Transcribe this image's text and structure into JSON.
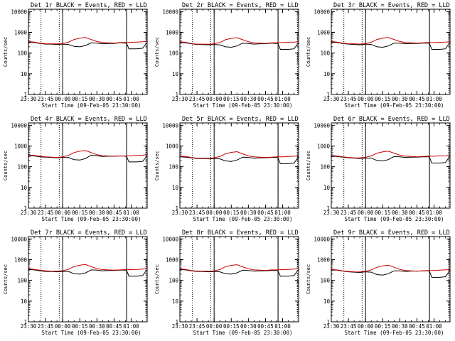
{
  "figure": {
    "common": {
      "xlabel": "Start Time (09-Feb-05 23:30:00)",
      "ylabel": "Counts/sec",
      "x_ticks": [
        "23:30",
        "23:45",
        "00:00",
        "00:15",
        "00:30",
        "00:45",
        "01:00"
      ],
      "x_tick_minutes": [
        0,
        15,
        30,
        45,
        60,
        75,
        90
      ],
      "y_ticks": [
        "1",
        "10",
        "100",
        "1000",
        "10000"
      ],
      "y_tick_values": [
        1,
        10,
        100,
        1000,
        10000
      ],
      "xlim_minutes": [
        0,
        104
      ],
      "ylim": [
        1,
        13000
      ],
      "yscale": "log",
      "vertical_lines": {
        "solid_minutes": [
          30,
          86
        ],
        "dotted_minutes": [
          11,
          27,
          86,
          103
        ]
      },
      "colors": {
        "events": "#000000",
        "lld": "#cc0000",
        "axis": "#000000",
        "background": "#ffffff"
      }
    }
  },
  "chart_data": [
    {
      "type": "line",
      "title": "Det 1r BLACK = Events, RED = LLD",
      "xlabel": "Start Time (09-Feb-05 23:30:00)",
      "ylabel": "Counts/sec",
      "ylim": [
        1,
        13000
      ],
      "series": [
        {
          "name": "Events",
          "color": "#000000",
          "x": [
            0,
            5,
            10,
            15,
            20,
            25,
            30,
            35,
            40,
            45,
            50,
            55,
            60,
            65,
            70,
            75,
            80,
            85,
            86,
            88,
            90,
            95,
            100,
            104
          ],
          "values": [
            330,
            320,
            290,
            270,
            270,
            260,
            270,
            260,
            210,
            200,
            230,
            310,
            300,
            280,
            290,
            290,
            310,
            300,
            290,
            160,
            160,
            160,
            170,
            330
          ]
        },
        {
          "name": "LLD",
          "color": "#cc0000",
          "x": [
            0,
            5,
            10,
            15,
            20,
            25,
            30,
            35,
            40,
            45,
            50,
            55,
            60,
            65,
            70,
            75,
            80,
            85,
            90,
            95,
            100,
            104
          ],
          "values": [
            360,
            340,
            300,
            280,
            280,
            275,
            290,
            330,
            450,
            520,
            560,
            450,
            360,
            320,
            310,
            300,
            320,
            320,
            330,
            340,
            350,
            360
          ]
        }
      ]
    },
    {
      "type": "line",
      "title": "Det 2r BLACK = Events, RED = LLD",
      "xlabel": "Start Time (09-Feb-05 23:30:00)",
      "ylabel": "Counts/sec",
      "ylim": [
        1,
        13000
      ],
      "series": [
        {
          "name": "Events",
          "color": "#000000",
          "x": [
            0,
            5,
            10,
            15,
            20,
            25,
            30,
            35,
            40,
            45,
            50,
            55,
            60,
            65,
            70,
            75,
            80,
            85,
            86,
            88,
            90,
            95,
            100,
            104
          ],
          "values": [
            320,
            310,
            280,
            260,
            260,
            250,
            260,
            250,
            200,
            190,
            220,
            300,
            290,
            270,
            280,
            280,
            300,
            290,
            280,
            150,
            150,
            150,
            160,
            320
          ]
        },
        {
          "name": "LLD",
          "color": "#cc0000",
          "x": [
            0,
            5,
            10,
            15,
            20,
            25,
            30,
            35,
            40,
            45,
            50,
            55,
            60,
            65,
            70,
            75,
            80,
            85,
            90,
            95,
            100,
            104
          ],
          "values": [
            350,
            330,
            290,
            270,
            270,
            265,
            280,
            320,
            440,
            510,
            550,
            440,
            350,
            310,
            300,
            290,
            310,
            310,
            320,
            330,
            340,
            350
          ]
        }
      ]
    },
    {
      "type": "line",
      "title": "Det 3r BLACK = Events, RED = LLD",
      "xlabel": "Start Time (09-Feb-05 23:30:00)",
      "ylabel": "Counts/sec",
      "ylim": [
        1,
        13000
      ],
      "series": [
        {
          "name": "Events",
          "color": "#000000",
          "x": [
            0,
            5,
            10,
            15,
            20,
            25,
            30,
            35,
            40,
            45,
            50,
            55,
            60,
            65,
            70,
            75,
            80,
            85,
            86,
            88,
            90,
            95,
            100,
            104
          ],
          "values": [
            330,
            320,
            290,
            270,
            260,
            250,
            270,
            260,
            200,
            190,
            220,
            300,
            300,
            280,
            290,
            290,
            300,
            300,
            290,
            150,
            150,
            150,
            160,
            330
          ]
        },
        {
          "name": "LLD",
          "color": "#cc0000",
          "x": [
            0,
            5,
            10,
            15,
            20,
            25,
            30,
            35,
            40,
            45,
            50,
            55,
            60,
            65,
            70,
            75,
            80,
            85,
            90,
            95,
            100,
            104
          ],
          "values": [
            360,
            340,
            300,
            280,
            280,
            270,
            290,
            330,
            450,
            520,
            560,
            450,
            360,
            320,
            310,
            300,
            310,
            320,
            320,
            330,
            340,
            350
          ]
        }
      ]
    },
    {
      "type": "line",
      "title": "Det 4r BLACK = Events, RED = LLD",
      "xlabel": "Start Time (09-Feb-05 23:30:00)",
      "ylabel": "Counts/sec",
      "ylim": [
        1,
        13000
      ],
      "series": [
        {
          "name": "Events",
          "color": "#000000",
          "x": [
            0,
            5,
            10,
            15,
            20,
            25,
            30,
            35,
            40,
            45,
            50,
            55,
            60,
            65,
            70,
            75,
            80,
            85,
            86,
            88,
            90,
            95,
            100,
            104
          ],
          "values": [
            340,
            330,
            300,
            290,
            280,
            270,
            280,
            280,
            220,
            210,
            250,
            360,
            340,
            310,
            320,
            320,
            330,
            320,
            310,
            170,
            170,
            170,
            180,
            340
          ]
        },
        {
          "name": "LLD",
          "color": "#cc0000",
          "x": [
            0,
            5,
            10,
            15,
            20,
            25,
            30,
            35,
            40,
            45,
            50,
            55,
            60,
            65,
            70,
            75,
            80,
            85,
            90,
            95,
            100,
            104
          ],
          "values": [
            370,
            350,
            320,
            300,
            290,
            280,
            300,
            350,
            480,
            560,
            600,
            480,
            380,
            340,
            330,
            320,
            330,
            330,
            340,
            350,
            360,
            380
          ]
        }
      ]
    },
    {
      "type": "line",
      "title": "Det 5r BLACK = Events, RED = LLD",
      "xlabel": "Start Time (09-Feb-05 23:30:00)",
      "ylabel": "Counts/sec",
      "ylim": [
        1,
        13000
      ],
      "series": [
        {
          "name": "Events",
          "color": "#000000",
          "x": [
            0,
            5,
            10,
            15,
            20,
            25,
            30,
            35,
            40,
            45,
            50,
            55,
            60,
            65,
            70,
            75,
            80,
            85,
            86,
            88,
            90,
            95,
            100,
            104
          ],
          "values": [
            300,
            290,
            270,
            250,
            250,
            240,
            250,
            240,
            190,
            180,
            210,
            290,
            280,
            260,
            270,
            270,
            280,
            280,
            270,
            140,
            140,
            140,
            150,
            300
          ]
        },
        {
          "name": "LLD",
          "color": "#cc0000",
          "x": [
            0,
            5,
            10,
            15,
            20,
            25,
            30,
            35,
            40,
            45,
            50,
            55,
            60,
            65,
            70,
            75,
            80,
            85,
            90,
            95,
            100,
            104
          ],
          "values": [
            330,
            310,
            280,
            260,
            260,
            250,
            270,
            310,
            420,
            490,
            530,
            420,
            330,
            300,
            290,
            280,
            290,
            300,
            300,
            310,
            320,
            330
          ]
        }
      ]
    },
    {
      "type": "line",
      "title": "Det 6r BLACK = Events, RED = LLD",
      "xlabel": "Start Time (09-Feb-05 23:30:00)",
      "ylabel": "Counts/sec",
      "ylim": [
        1,
        13000
      ],
      "series": [
        {
          "name": "Events",
          "color": "#000000",
          "x": [
            0,
            5,
            10,
            15,
            20,
            25,
            30,
            35,
            40,
            45,
            50,
            55,
            60,
            65,
            70,
            75,
            80,
            85,
            86,
            88,
            90,
            95,
            100,
            104
          ],
          "values": [
            320,
            310,
            290,
            270,
            260,
            250,
            260,
            260,
            200,
            190,
            220,
            310,
            300,
            280,
            290,
            290,
            300,
            300,
            290,
            150,
            150,
            150,
            160,
            320
          ]
        },
        {
          "name": "LLD",
          "color": "#cc0000",
          "x": [
            0,
            5,
            10,
            15,
            20,
            25,
            30,
            35,
            40,
            45,
            50,
            55,
            60,
            65,
            70,
            75,
            80,
            85,
            90,
            95,
            100,
            104
          ],
          "values": [
            350,
            330,
            300,
            280,
            270,
            265,
            285,
            330,
            450,
            520,
            560,
            450,
            360,
            320,
            310,
            300,
            310,
            320,
            320,
            330,
            340,
            350
          ]
        }
      ]
    },
    {
      "type": "line",
      "title": "Det 7r BLACK = Events, RED = LLD",
      "xlabel": "Start Time (09-Feb-05 23:30:00)",
      "ylabel": "Counts/sec",
      "ylim": [
        1,
        13000
      ],
      "series": [
        {
          "name": "Events",
          "color": "#000000",
          "x": [
            0,
            5,
            10,
            15,
            20,
            25,
            30,
            35,
            40,
            45,
            50,
            55,
            60,
            65,
            70,
            75,
            80,
            85,
            86,
            88,
            90,
            95,
            100,
            104
          ],
          "values": [
            340,
            320,
            290,
            270,
            270,
            260,
            270,
            270,
            210,
            200,
            230,
            320,
            310,
            290,
            300,
            300,
            310,
            310,
            300,
            160,
            160,
            160,
            170,
            330
          ]
        },
        {
          "name": "LLD",
          "color": "#cc0000",
          "x": [
            0,
            5,
            10,
            15,
            20,
            25,
            30,
            35,
            40,
            45,
            50,
            55,
            60,
            65,
            70,
            75,
            80,
            85,
            90,
            95,
            100,
            104
          ],
          "values": [
            370,
            340,
            310,
            290,
            280,
            275,
            295,
            340,
            470,
            540,
            580,
            460,
            370,
            330,
            320,
            310,
            320,
            330,
            330,
            340,
            350,
            360
          ]
        }
      ]
    },
    {
      "type": "line",
      "title": "Det 8r BLACK = Events, RED = LLD",
      "xlabel": "Start Time (09-Feb-05 23:30:00)",
      "ylabel": "Counts/sec",
      "ylim": [
        1,
        13000
      ],
      "series": [
        {
          "name": "Events",
          "color": "#000000",
          "x": [
            0,
            5,
            10,
            15,
            20,
            25,
            30,
            35,
            40,
            45,
            50,
            55,
            60,
            65,
            70,
            75,
            80,
            85,
            86,
            88,
            90,
            95,
            100,
            104
          ],
          "values": [
            330,
            320,
            290,
            270,
            270,
            260,
            270,
            260,
            210,
            200,
            230,
            310,
            300,
            280,
            290,
            290,
            300,
            300,
            290,
            160,
            160,
            160,
            170,
            330
          ]
        },
        {
          "name": "LLD",
          "color": "#cc0000",
          "x": [
            0,
            5,
            10,
            15,
            20,
            25,
            30,
            35,
            40,
            45,
            50,
            55,
            60,
            65,
            70,
            75,
            80,
            85,
            90,
            95,
            100,
            104
          ],
          "values": [
            360,
            340,
            300,
            280,
            280,
            275,
            290,
            330,
            460,
            530,
            570,
            450,
            360,
            320,
            310,
            300,
            320,
            320,
            330,
            340,
            350,
            360
          ]
        }
      ]
    },
    {
      "type": "line",
      "title": "Det 9r BLACK = Events, RED = LLD",
      "xlabel": "Start Time (09-Feb-05 23:30:00)",
      "ylabel": "Counts/sec",
      "ylim": [
        1,
        13000
      ],
      "series": [
        {
          "name": "Events",
          "color": "#000000",
          "x": [
            0,
            5,
            10,
            15,
            20,
            25,
            30,
            35,
            40,
            45,
            50,
            55,
            60,
            65,
            70,
            75,
            80,
            85,
            86,
            88,
            90,
            95,
            100,
            104
          ],
          "values": [
            320,
            310,
            280,
            260,
            250,
            240,
            260,
            250,
            190,
            180,
            210,
            290,
            290,
            270,
            280,
            280,
            290,
            290,
            280,
            140,
            140,
            140,
            150,
            310
          ]
        },
        {
          "name": "LLD",
          "color": "#cc0000",
          "x": [
            0,
            5,
            10,
            15,
            20,
            25,
            30,
            35,
            40,
            45,
            50,
            55,
            60,
            65,
            70,
            75,
            80,
            85,
            90,
            95,
            100,
            104
          ],
          "values": [
            340,
            320,
            290,
            270,
            260,
            255,
            275,
            320,
            430,
            500,
            540,
            430,
            340,
            300,
            290,
            280,
            290,
            300,
            300,
            310,
            320,
            330
          ]
        }
      ]
    }
  ]
}
